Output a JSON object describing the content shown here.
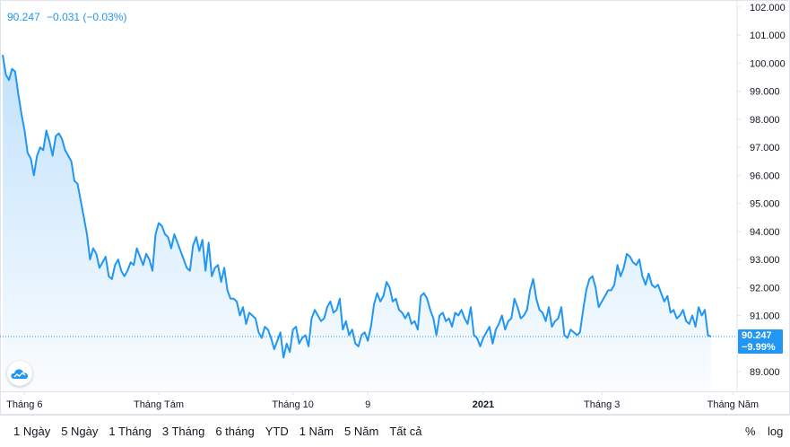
{
  "legend": {
    "value": "90.247",
    "change": "−0.031 (−0.03%)"
  },
  "price_tag": {
    "value": "90.247",
    "percent": "−9.99%"
  },
  "range_buttons": [
    "1 Ngày",
    "5 Ngày",
    "1 Tháng",
    "3 Tháng",
    "6 tháng",
    "YTD",
    "1 Năm",
    "5 Năm",
    "Tất cả"
  ],
  "options": {
    "percent": "%",
    "log": "log"
  },
  "colors": {
    "line": "#2196f3",
    "text": "#131722",
    "axis_text": "#787b86",
    "grid": "#e0e3eb"
  },
  "icons": {
    "logo": "tradingview-cloud-icon"
  },
  "chart_data": {
    "type": "area",
    "title": "",
    "xlabel": "",
    "ylabel": "",
    "ylim": [
      88.6,
      102.2
    ],
    "y_ticks": [
      "102.000",
      "101.000",
      "100.000",
      "99.000",
      "98.000",
      "97.000",
      "96.000",
      "95.000",
      "94.000",
      "93.000",
      "92.000",
      "91.000",
      "90.000",
      "89.000"
    ],
    "x_ticks": [
      {
        "label": "Tháng 6",
        "bold": false,
        "index": 7
      },
      {
        "label": "Tháng Tám",
        "bold": false,
        "index": 50
      },
      {
        "label": "Tháng 10",
        "bold": false,
        "index": 93
      },
      {
        "label": "9",
        "bold": false,
        "index": 117
      },
      {
        "label": "2021",
        "bold": true,
        "index": 154
      },
      {
        "label": "Tháng 3",
        "bold": false,
        "index": 192
      },
      {
        "label": "Tháng Năm",
        "bold": false,
        "index": 234
      }
    ],
    "grid": false,
    "last_value": 90.247,
    "series": [
      {
        "values": [
          100.3,
          99.6,
          99.4,
          99.8,
          99.7,
          98.9,
          98.2,
          97.6,
          96.8,
          96.6,
          96.0,
          96.7,
          97.0,
          96.9,
          97.6,
          97.2,
          96.7,
          97.4,
          97.5,
          97.3,
          96.9,
          96.7,
          96.5,
          95.8,
          95.7,
          95.1,
          94.5,
          93.9,
          93.0,
          93.4,
          93.2,
          92.7,
          92.9,
          93.1,
          92.4,
          92.3,
          92.8,
          93.0,
          92.6,
          92.4,
          92.6,
          92.9,
          92.8,
          93.4,
          93.1,
          92.8,
          93.2,
          93.0,
          92.6,
          93.9,
          94.3,
          94.2,
          93.9,
          93.8,
          93.4,
          93.9,
          93.6,
          93.3,
          93.0,
          92.7,
          92.6,
          93.5,
          93.8,
          93.3,
          93.7,
          92.6,
          93.6,
          92.4,
          92.7,
          92.8,
          92.2,
          92.7,
          91.9,
          91.6,
          91.6,
          91.5,
          91.0,
          91.3,
          90.7,
          91.1,
          91.0,
          90.9,
          90.4,
          90.2,
          90.6,
          90.5,
          90.2,
          89.8,
          90.1,
          90.4,
          89.5,
          90.0,
          89.7,
          90.5,
          90.6,
          90.0,
          90.2,
          90.3,
          89.9,
          90.9,
          91.2,
          91.0,
          90.8,
          90.9,
          91.3,
          91.5,
          91.1,
          91.2,
          91.6,
          90.5,
          90.8,
          90.3,
          90.5,
          90.0,
          89.9,
          90.3,
          90.4,
          90.1,
          90.6,
          91.4,
          91.8,
          91.5,
          91.7,
          92.2,
          92.0,
          91.5,
          91.6,
          91.2,
          91.1,
          90.9,
          91.1,
          90.7,
          90.8,
          90.5,
          91.7,
          91.8,
          91.6,
          91.2,
          90.9,
          90.3,
          91.0,
          91.1,
          90.8,
          90.9,
          90.6,
          91.1,
          91.0,
          91.2,
          90.9,
          90.7,
          91.3,
          90.3,
          90.2,
          89.9,
          90.2,
          90.4,
          90.6,
          90.0,
          90.5,
          90.7,
          91.0,
          90.5,
          90.8,
          90.9,
          91.6,
          91.3,
          90.9,
          91.0,
          91.2,
          91.9,
          92.3,
          91.6,
          91.2,
          91.1,
          90.8,
          91.3,
          90.6,
          90.8,
          90.9,
          91.3,
          90.3,
          90.2,
          90.5,
          90.4,
          90.3,
          90.4,
          91.2,
          91.9,
          92.3,
          92.4,
          92.0,
          91.3,
          91.5,
          91.7,
          91.9,
          91.9,
          92.1,
          92.8,
          92.4,
          92.7,
          93.2,
          93.1,
          92.9,
          92.8,
          93.0,
          92.4,
          92.1,
          92.5,
          92.1,
          92.0,
          92.1,
          91.8,
          91.5,
          91.7,
          91.1,
          91.2,
          90.9,
          91.0,
          91.2,
          90.8,
          90.7,
          91.0,
          90.6,
          91.3,
          91.0,
          91.2,
          90.3,
          90.247
        ]
      }
    ]
  }
}
